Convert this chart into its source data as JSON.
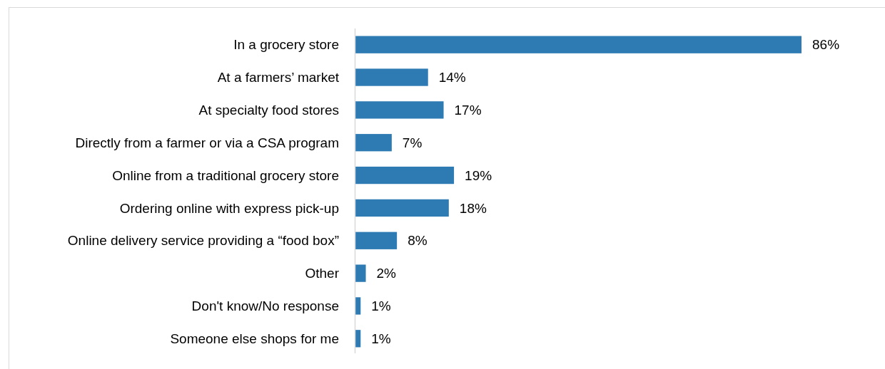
{
  "chart_data": {
    "type": "bar",
    "orientation": "horizontal",
    "categories": [
      "In a grocery store",
      "At a farmers’ market",
      "At specialty food stores",
      "Directly from a farmer or via a CSA program",
      "Online from a traditional grocery store",
      "Ordering online with express pick-up",
      "Online delivery service providing a “food box”",
      "Other",
      "Don't know/No response",
      "Someone else shops for me"
    ],
    "values": [
      86,
      14,
      17,
      7,
      19,
      18,
      8,
      2,
      1,
      1
    ],
    "value_labels": [
      "86%",
      "14%",
      "17%",
      "7%",
      "19%",
      "18%",
      "8%",
      "2%",
      "1%",
      "1%"
    ],
    "color": "#2e7bb4"
  }
}
